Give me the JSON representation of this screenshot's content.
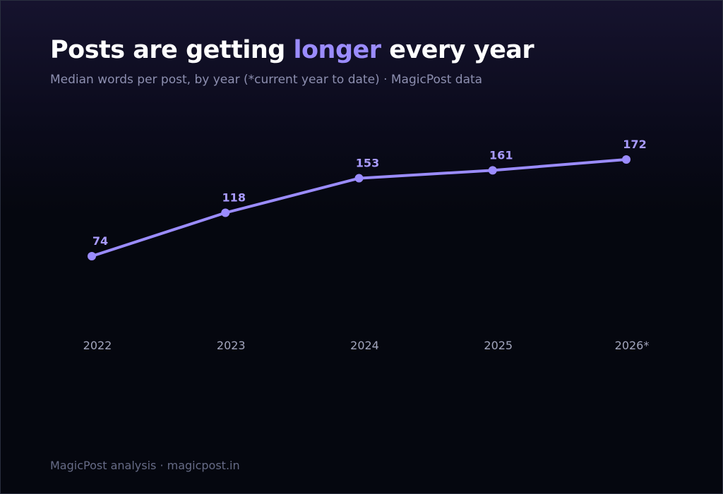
{
  "header": {
    "title_prefix": "Posts are getting ",
    "title_accent": "longer",
    "title_suffix": " every year",
    "subtitle": "Median words per post, by year (*current year to date) · MagicPost data"
  },
  "footer": {
    "source": "MagicPost analysis · magicpost.in"
  },
  "colors": {
    "line": "#9b8cff",
    "point_label": "#a99bff",
    "tick_label": "#a3a6bd",
    "title": "#ffffff",
    "accent": "#9b8cff"
  },
  "chart_data": {
    "type": "line",
    "title": "Posts are getting longer every year",
    "subtitle": "Median words per post, by year (*current year to date) · MagicPost data",
    "xlabel": "",
    "ylabel": "",
    "categories": [
      "2022",
      "2023",
      "2024",
      "2025",
      "2026*"
    ],
    "series": [
      {
        "values": [
          74,
          118,
          153,
          161,
          172
        ]
      }
    ],
    "data_labels": [
      "74",
      "118",
      "153",
      "161",
      "172"
    ],
    "grid": false,
    "legend": "none",
    "y_axis_visible": false
  }
}
